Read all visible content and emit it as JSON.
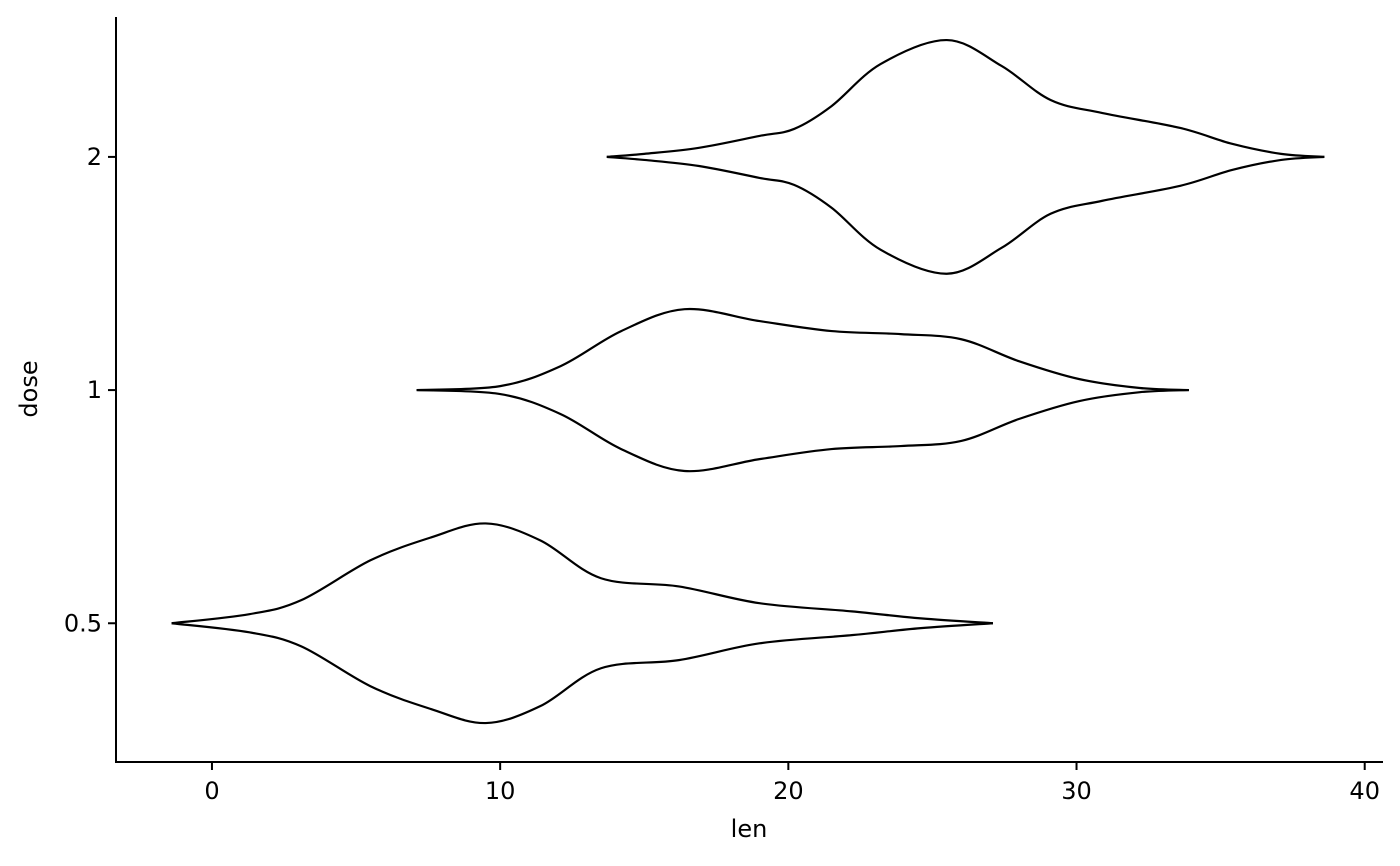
{
  "chart_data": {
    "type": "violin",
    "orientation": "horizontal",
    "x_label": "len",
    "y_label": "dose",
    "categories": [
      "0.5",
      "1",
      "2"
    ],
    "xlim": [
      -3.33,
      40.6
    ],
    "xticks": [
      0,
      10,
      20,
      30,
      40
    ],
    "color": "#000000",
    "series": [
      {
        "x": [
          -1.4,
          1.3,
          3.1,
          5.5,
          7.6,
          9.5,
          11.4,
          13.5,
          16.2,
          19,
          22.2,
          24.6,
          27.1
        ],
        "half_widths": [
          0,
          0.039,
          0.099,
          0.27,
          0.368,
          0.428,
          0.355,
          0.193,
          0.158,
          0.086,
          0.051,
          0.021,
          0
        ]
      },
      {
        "x": [
          7.1,
          10,
          12.1,
          14.2,
          16.4,
          19,
          21.5,
          23.9,
          26,
          28,
          30.1,
          32.2,
          33.9
        ],
        "half_widths": [
          0,
          0.017,
          0.103,
          0.253,
          0.347,
          0.296,
          0.253,
          0.24,
          0.218,
          0.124,
          0.047,
          0.009,
          0
        ]
      },
      {
        "x": [
          13.7,
          15,
          16.9,
          19,
          20.2,
          21.5,
          23.2,
          25.5,
          27.4,
          29.1,
          30.9,
          33.6,
          35.4,
          37.1,
          38.6
        ],
        "half_widths": [
          0,
          0.013,
          0.039,
          0.09,
          0.12,
          0.218,
          0.398,
          0.501,
          0.39,
          0.244,
          0.188,
          0.124,
          0.056,
          0.013,
          0
        ]
      }
    ]
  }
}
